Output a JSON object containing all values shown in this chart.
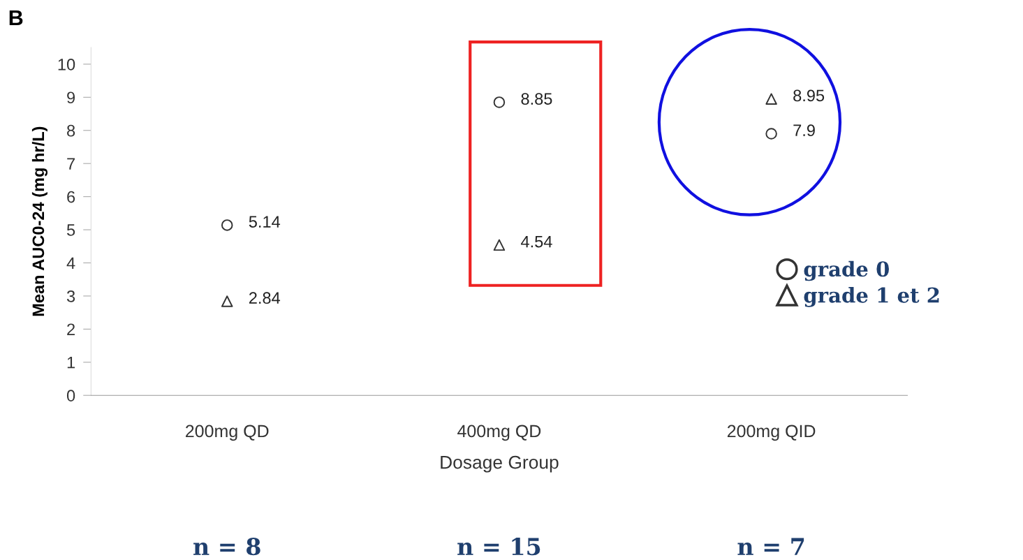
{
  "chart_data": {
    "type": "scatter",
    "ylabel": "Mean AUC0-24 (mg hr/L)",
    "xlabel": "Dosage Group",
    "categories": [
      "200mg QD",
      "400mg QD",
      "200mg QID"
    ],
    "series": [
      {
        "name": "grade 0",
        "color": "#333333",
        "marker": "circle",
        "values": [
          5.14,
          8.85,
          7.9
        ]
      },
      {
        "name": "grade 1 et 2",
        "color": "#333333",
        "marker": "triangle",
        "values": [
          2.84,
          4.54,
          8.95
        ]
      }
    ],
    "ylim": [
      0,
      10.5
    ],
    "yticks": [
      0,
      1,
      2,
      3,
      4,
      5,
      6,
      7,
      8,
      9,
      10
    ],
    "data_labels": true,
    "grid": false,
    "legend": "right",
    "annotations": [
      "B",
      "n = 8",
      "n = 15",
      "n = 7"
    ]
  }
}
